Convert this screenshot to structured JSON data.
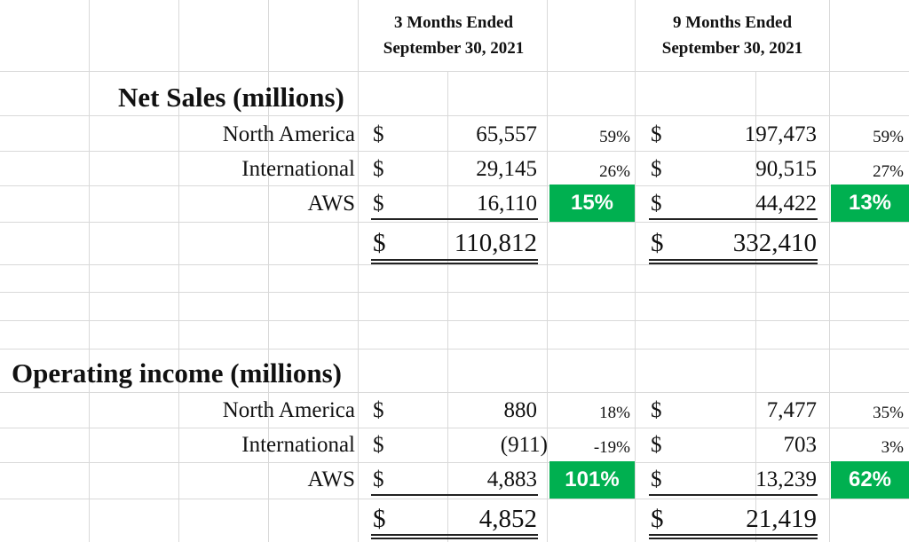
{
  "header": {
    "col1_line1": "3 Months Ended",
    "col1_line2": "September 30, 2021",
    "col2_line1": "9 Months Ended",
    "col2_line2": "September 30, 2021"
  },
  "net_sales": {
    "title": "Net Sales (millions)",
    "rows": [
      {
        "label": "North America",
        "cur3": "$",
        "v3": "65,557",
        "p3": "59%",
        "cur9": "$",
        "v9": "197,473",
        "p9": "59%"
      },
      {
        "label": "International",
        "cur3": "$",
        "v3": "29,145",
        "p3": "26%",
        "cur9": "$",
        "v9": "90,515",
        "p9": "27%"
      },
      {
        "label": "AWS",
        "cur3": "$",
        "v3": "16,110",
        "p3": "15%",
        "cur9": "$",
        "v9": "44,422",
        "p9": "13%"
      }
    ],
    "total": {
      "cur3": "$",
      "v3": "110,812",
      "cur9": "$",
      "v9": "332,410"
    }
  },
  "operating_income": {
    "title": "Operating income (millions)",
    "rows": [
      {
        "label": "North America",
        "cur3": "$",
        "v3": "880",
        "p3": "18%",
        "cur9": "$",
        "v9": "7,477",
        "p9": "35%"
      },
      {
        "label": "International",
        "cur3": "$",
        "v3": "(911)",
        "p3": "-19%",
        "cur9": "$",
        "v9": "703",
        "p9": "3%"
      },
      {
        "label": "AWS",
        "cur3": "$",
        "v3": "4,883",
        "p3": "101%",
        "cur9": "$",
        "v9": "13,239",
        "p9": "62%"
      }
    ],
    "total": {
      "cur3": "$",
      "v3": "4,852",
      "cur9": "$",
      "v9": "21,419"
    }
  },
  "colors": {
    "highlight": "#00b050",
    "gridline": "#d9d9d9"
  }
}
